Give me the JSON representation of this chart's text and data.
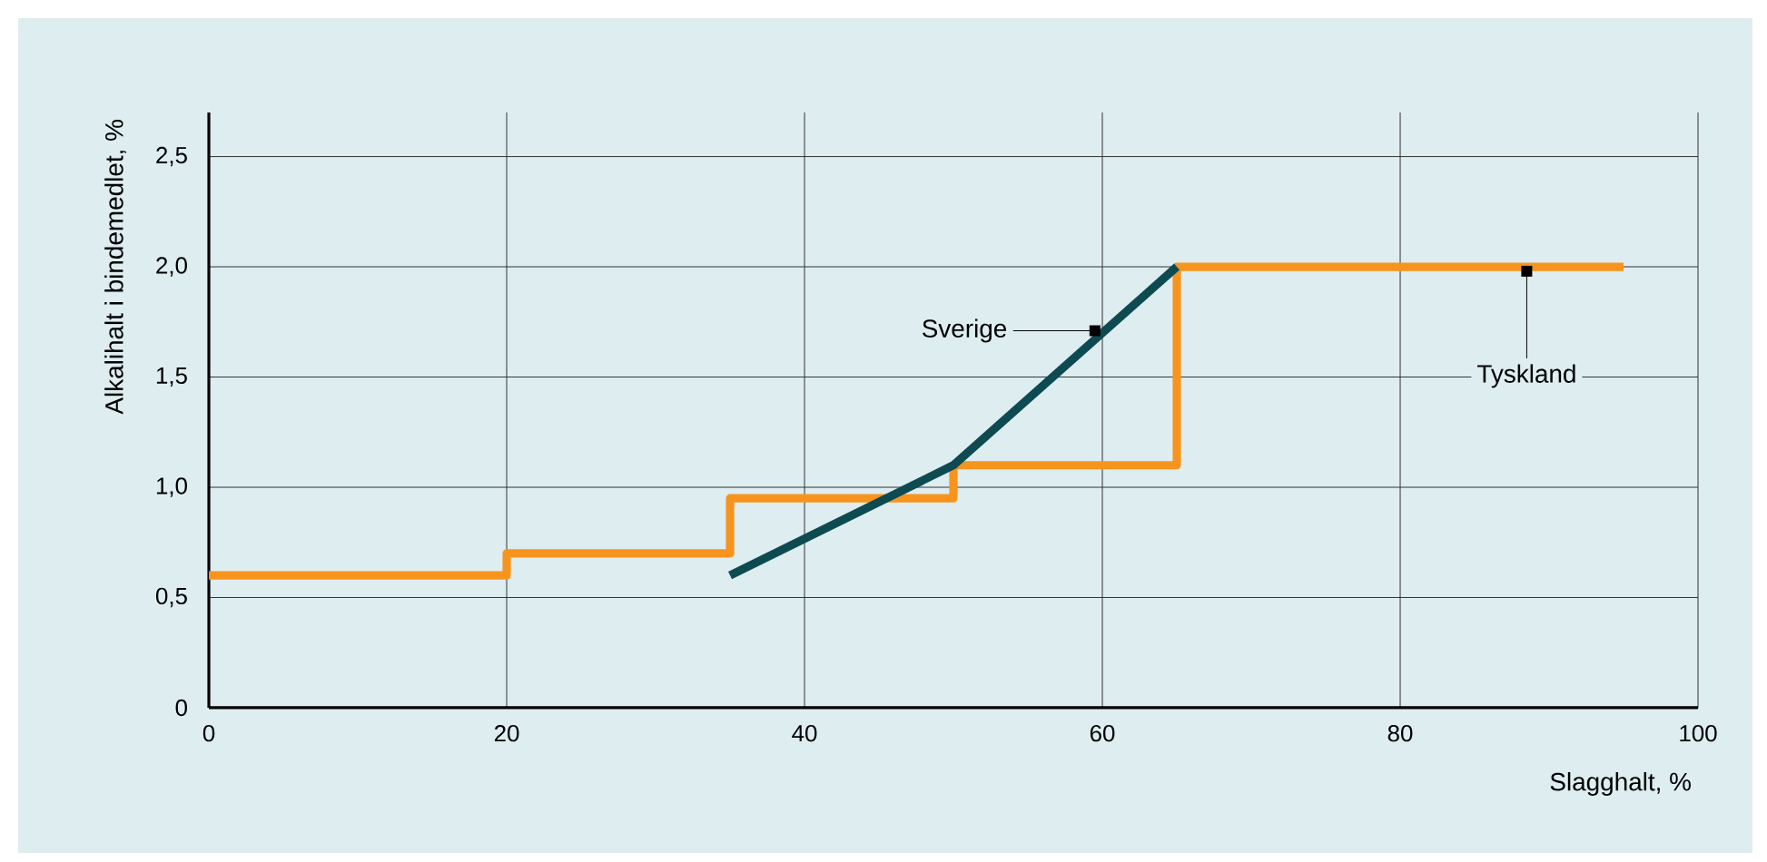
{
  "chart_data": {
    "type": "line",
    "xlabel": "Slagghalt, %",
    "ylabel": "Alkalihalt i bindemedlet, %",
    "series": [
      {
        "type": "step",
        "color": "#f7941d",
        "x": [
          0,
          20,
          35,
          50,
          65,
          95
        ],
        "values": [
          0.6,
          0.7,
          0.95,
          1.1,
          2.0,
          2.0
        ]
      },
      {
        "color": "#0d4a52",
        "x": [
          35,
          50,
          65
        ],
        "values": [
          0.6,
          1.1,
          2.0
        ]
      }
    ],
    "xlim": [
      0,
      100
    ],
    "ylim": [
      0,
      2.7
    ],
    "xticks": [
      0,
      20,
      40,
      60,
      80,
      100
    ],
    "yticks": [
      0,
      {
        "value": 0.5,
        "label": "0,5"
      },
      {
        "value": 1.0,
        "label": "1,0"
      },
      {
        "value": 1.5,
        "label": "1,5"
      },
      {
        "value": 2.0,
        "label": "2,0"
      },
      {
        "value": 2.5,
        "label": "2,5"
      }
    ],
    "grid": true,
    "marker": "none",
    "line_style": "solid",
    "annotations": [
      {
        "text": "Sverige",
        "x": 59.5,
        "y": 1.71
      },
      {
        "text": "Tyskland",
        "x": 88.5,
        "y": 1.98
      }
    ]
  }
}
